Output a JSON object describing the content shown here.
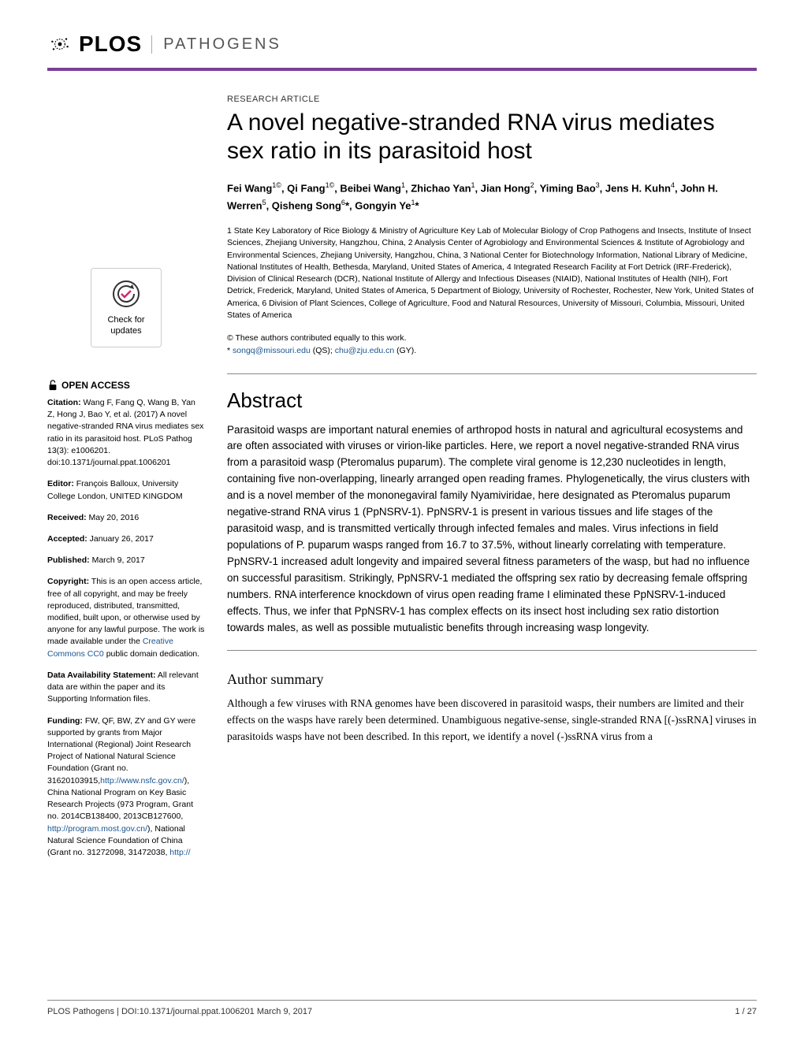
{
  "header": {
    "logo_text": "PLOS",
    "journal": "PATHOGENS"
  },
  "article": {
    "type": "RESEARCH ARTICLE",
    "title": "A novel negative-stranded RNA virus mediates sex ratio in its parasitoid host",
    "authors_html": "Fei Wang<sup>1©</sup>, Qi Fang<sup>1©</sup>, Beibei Wang<sup>1</sup>, Zhichao Yan<sup>1</sup>, Jian Hong<sup>2</sup>, Yiming Bao<sup>3</sup>, Jens H. Kuhn<sup>4</sup>, John H. Werren<sup>5</sup>, Qisheng Song<sup>6</sup>*, Gongyin Ye<sup>1</sup>*",
    "affiliations": "1 State Key Laboratory of Rice Biology & Ministry of Agriculture Key Lab of Molecular Biology of Crop Pathogens and Insects, Institute of Insect Sciences, Zhejiang University, Hangzhou, China, 2 Analysis Center of Agrobiology and Environmental Sciences & Institute of Agrobiology and Environmental Sciences, Zhejiang University, Hangzhou, China, 3 National Center for Biotechnology Information, National Library of Medicine, National Institutes of Health, Bethesda, Maryland, United States of America, 4 Integrated Research Facility at Fort Detrick (IRF-Frederick), Division of Clinical Research (DCR), National Institute of Allergy and Infectious Diseases (NIAID), National Institutes of Health (NIH), Fort Detrick, Frederick, Maryland, United States of America, 5 Department of Biology, University of Rochester, Rochester, New York, United States of America, 6 Division of Plant Sciences, College of Agriculture, Food and Natural Resources, University of Missouri, Columbia, Missouri, United States of America",
    "contrib_equal": "© These authors contributed equally to this work.",
    "corresponding_prefix": "* ",
    "corresponding_1": "songq@missouri.edu",
    "corresponding_1_suffix": " (QS); ",
    "corresponding_2": "chu@zju.edu.cn",
    "corresponding_2_suffix": " (GY)."
  },
  "sidebar": {
    "check_updates": "Check for updates",
    "open_access": "OPEN ACCESS",
    "citation_label": "Citation:",
    "citation": " Wang F, Fang Q, Wang B, Yan Z, Hong J, Bao Y, et al. (2017) A novel negative-stranded RNA virus mediates sex ratio in its parasitoid host. PLoS Pathog 13(3): e1006201. doi:10.1371/journal.ppat.1006201",
    "editor_label": "Editor:",
    "editor": " François Balloux, University College London, UNITED KINGDOM",
    "received_label": "Received:",
    "received": " May 20, 2016",
    "accepted_label": "Accepted:",
    "accepted": " January 26, 2017",
    "published_label": "Published:",
    "published": " March 9, 2017",
    "copyright_label": "Copyright:",
    "copyright_text": " This is an open access article, free of all copyright, and may be freely reproduced, distributed, transmitted, modified, built upon, or otherwise used by anyone for any lawful purpose. The work is made available under the ",
    "copyright_link": "Creative Commons CC0",
    "copyright_suffix": " public domain dedication.",
    "data_label": "Data Availability Statement:",
    "data": " All relevant data are within the paper and its Supporting Information files.",
    "funding_label": "Funding:",
    "funding_1": " FW, QF, BW, ZY and GY were supported by grants from Major International (Regional) Joint Research Project of National Natural Science Foundation (Grant no. 31620103915,",
    "funding_link1": "http://www.nsfc.gov.cn/",
    "funding_2": "), China National Program on Key Basic Research Projects (973 Program, Grant no. 2014CB138400, 2013CB127600, ",
    "funding_link2": "http://program.most.gov.cn/",
    "funding_3": "), National Natural Science Foundation of China (Grant no. 31272098, 31472038, ",
    "funding_link3": "http://"
  },
  "abstract": {
    "heading": "Abstract",
    "text": "Parasitoid wasps are important natural enemies of arthropod hosts in natural and agricultural ecosystems and are often associated with viruses or virion-like particles. Here, we report a novel negative-stranded RNA virus from a parasitoid wasp (Pteromalus puparum). The complete viral genome is 12,230 nucleotides in length, containing five non-overlapping, linearly arranged open reading frames. Phylogenetically, the virus clusters with and is a novel member of the mononegaviral family Nyamiviridae, here designated as Pteromalus puparum negative-strand RNA virus 1 (PpNSRV-1). PpNSRV-1 is present in various tissues and life stages of the parasitoid wasp, and is transmitted vertically through infected females and males. Virus infections in field populations of P. puparum wasps ranged from 16.7 to 37.5%, without linearly correlating with temperature. PpNSRV-1 increased adult longevity and impaired several fitness parameters of the wasp, but had no influence on successful parasitism. Strikingly, PpNSRV-1 mediated the offspring sex ratio by decreasing female offspring numbers. RNA interference knockdown of virus open reading frame I eliminated these PpNSRV-1-induced effects. Thus, we infer that PpNSRV-1 has complex effects on its insect host including sex ratio distortion towards males, as well as possible mutualistic benefits through increasing wasp longevity."
  },
  "author_summary": {
    "heading": "Author summary",
    "text": "Although a few viruses with RNA genomes have been discovered in parasitoid wasps, their numbers are limited and their effects on the wasps have rarely been determined. Unambiguous negative-sense, single-stranded RNA [(-)ssRNA] viruses in parasitoids wasps have not been described. In this report, we identify a novel (-)ssRNA virus from a"
  },
  "footer": {
    "left": "PLOS Pathogens | DOI:10.1371/journal.ppat.1006201   March 9, 2017",
    "right": "1 / 27"
  },
  "colors": {
    "accent": "#7b3f98",
    "link": "#1a5490"
  }
}
